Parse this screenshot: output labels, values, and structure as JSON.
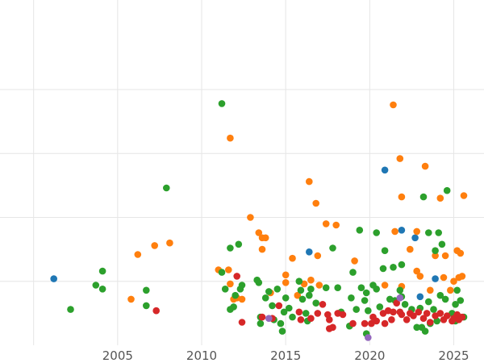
{
  "chart_data": {
    "type": "scatter",
    "title": "",
    "xlabel": "",
    "ylabel": "",
    "xlim": [
      1998.0,
      2026.8
    ],
    "ylim": [
      0,
      27
    ],
    "x_ticks": [
      2005,
      2010,
      2015,
      2020,
      2025
    ],
    "x_tick_labels": [
      "2005",
      "2010",
      "2015",
      "2020",
      "2025"
    ],
    "y_gridlines": [
      5,
      10,
      15,
      20
    ],
    "grid": true,
    "legend": "none",
    "series": [
      {
        "color": "#1f77b4",
        "points": [
          [
            2001.2,
            5.2
          ],
          [
            2016.4,
            7.3
          ],
          [
            2020.9,
            13.7
          ],
          [
            2021.9,
            9.0
          ],
          [
            2022.7,
            8.4
          ],
          [
            2023.9,
            5.2
          ],
          [
            2023.0,
            3.8
          ]
        ]
      },
      {
        "color": "#ff7f0e",
        "points": [
          [
            2005.8,
            3.6
          ],
          [
            2006.2,
            7.1
          ],
          [
            2007.2,
            7.8
          ],
          [
            2008.1,
            8.0
          ],
          [
            2011.0,
            5.9
          ],
          [
            2011.6,
            5.9
          ],
          [
            2011.7,
            16.2
          ],
          [
            2011.7,
            4.8
          ],
          [
            2011.9,
            3.6
          ],
          [
            2012.1,
            3.7
          ],
          [
            2012.4,
            3.6
          ],
          [
            2012.9,
            10.0
          ],
          [
            2013.4,
            8.8
          ],
          [
            2013.6,
            8.4
          ],
          [
            2013.6,
            7.5
          ],
          [
            2013.8,
            8.4
          ],
          [
            2014.1,
            4.1
          ],
          [
            2015.0,
            5.5
          ],
          [
            2015.0,
            4.9
          ],
          [
            2015.4,
            6.8
          ],
          [
            2015.7,
            3.9
          ],
          [
            2016.1,
            4.8
          ],
          [
            2016.4,
            12.8
          ],
          [
            2016.5,
            5.1
          ],
          [
            2016.8,
            11.1
          ],
          [
            2016.9,
            7.0
          ],
          [
            2017.0,
            4.7
          ],
          [
            2017.4,
            9.5
          ],
          [
            2018.0,
            9.4
          ],
          [
            2019.1,
            6.6
          ],
          [
            2020.9,
            4.7
          ],
          [
            2021.4,
            18.8
          ],
          [
            2021.5,
            8.9
          ],
          [
            2021.8,
            14.6
          ],
          [
            2021.9,
            4.6
          ],
          [
            2021.9,
            11.6
          ],
          [
            2022.4,
            7.5
          ],
          [
            2022.8,
            5.8
          ],
          [
            2022.8,
            8.9
          ],
          [
            2023.0,
            5.4
          ],
          [
            2023.3,
            14.0
          ],
          [
            2023.6,
            4.3
          ],
          [
            2023.9,
            7.0
          ],
          [
            2024.2,
            11.5
          ],
          [
            2024.4,
            5.3
          ],
          [
            2024.5,
            7.0
          ],
          [
            2024.8,
            4.3
          ],
          [
            2025.0,
            5.0
          ],
          [
            2025.2,
            7.4
          ],
          [
            2025.3,
            5.3
          ],
          [
            2025.4,
            7.2
          ],
          [
            2025.5,
            5.4
          ],
          [
            2025.6,
            11.7
          ]
        ]
      },
      {
        "color": "#2ca02c",
        "points": [
          [
            2002.2,
            2.8
          ],
          [
            2003.7,
            4.7
          ],
          [
            2004.1,
            5.8
          ],
          [
            2004.1,
            4.4
          ],
          [
            2006.7,
            4.3
          ],
          [
            2006.7,
            3.1
          ],
          [
            2007.9,
            12.3
          ],
          [
            2011.2,
            18.9
          ],
          [
            2011.2,
            5.7
          ],
          [
            2011.4,
            4.4
          ],
          [
            2011.7,
            7.6
          ],
          [
            2011.7,
            2.8
          ],
          [
            2011.9,
            3.0
          ],
          [
            2012.0,
            3.9
          ],
          [
            2012.2,
            7.9
          ],
          [
            2012.3,
            4.4
          ],
          [
            2012.4,
            4.7
          ],
          [
            2013.3,
            5.1
          ],
          [
            2013.4,
            4.9
          ],
          [
            2013.5,
            2.2
          ],
          [
            2013.5,
            1.7
          ],
          [
            2013.8,
            3.7
          ],
          [
            2014.0,
            4.2
          ],
          [
            2014.2,
            3.1
          ],
          [
            2014.3,
            2.0
          ],
          [
            2014.5,
            4.4
          ],
          [
            2014.7,
            1.7
          ],
          [
            2014.8,
            1.1
          ],
          [
            2014.9,
            2.6
          ],
          [
            2015.0,
            3.7
          ],
          [
            2015.2,
            2.9
          ],
          [
            2015.4,
            2.2
          ],
          [
            2015.8,
            5.0
          ],
          [
            2015.9,
            4.3
          ],
          [
            2016.0,
            3.6
          ],
          [
            2016.2,
            2.5
          ],
          [
            2016.3,
            1.9
          ],
          [
            2016.4,
            3.9
          ],
          [
            2016.5,
            4.4
          ],
          [
            2016.8,
            3.3
          ],
          [
            2017.4,
            4.5
          ],
          [
            2017.8,
            7.6
          ],
          [
            2018.1,
            4.5
          ],
          [
            2018.3,
            2.6
          ],
          [
            2018.8,
            1.5
          ],
          [
            2018.9,
            3.7
          ],
          [
            2019.0,
            5.7
          ],
          [
            2019.2,
            2.8
          ],
          [
            2019.4,
            9.0
          ],
          [
            2019.5,
            4.5
          ],
          [
            2019.7,
            3.5
          ],
          [
            2019.8,
            4.1
          ],
          [
            2019.8,
            0.9
          ],
          [
            2019.9,
            2.7
          ],
          [
            2020.2,
            4.7
          ],
          [
            2020.4,
            8.8
          ],
          [
            2020.4,
            4.4
          ],
          [
            2020.6,
            3.0
          ],
          [
            2020.8,
            6.0
          ],
          [
            2020.9,
            7.4
          ],
          [
            2021.2,
            3.6
          ],
          [
            2021.4,
            6.1
          ],
          [
            2021.5,
            3.5
          ],
          [
            2021.8,
            4.3
          ],
          [
            2021.9,
            6.3
          ],
          [
            2021.9,
            3.8
          ],
          [
            2022.1,
            3.2
          ],
          [
            2022.5,
            2.8
          ],
          [
            2022.8,
            1.4
          ],
          [
            2023.0,
            2.9
          ],
          [
            2023.1,
            1.4
          ],
          [
            2023.2,
            11.6
          ],
          [
            2023.3,
            1.1
          ],
          [
            2023.5,
            3.4
          ],
          [
            2023.5,
            8.8
          ],
          [
            2023.6,
            1.7
          ],
          [
            2023.8,
            2.8
          ],
          [
            2023.9,
            7.4
          ],
          [
            2024.0,
            1.9
          ],
          [
            2024.1,
            8.8
          ],
          [
            2024.2,
            3.9
          ],
          [
            2024.3,
            7.9
          ],
          [
            2024.5,
            3.6
          ],
          [
            2024.6,
            12.1
          ],
          [
            2024.9,
            2.5
          ],
          [
            2025.1,
            3.2
          ],
          [
            2025.1,
            1.9
          ],
          [
            2025.2,
            4.3
          ],
          [
            2025.4,
            3.5
          ],
          [
            2025.6,
            2.2
          ]
        ]
      },
      {
        "color": "#d62728",
        "points": [
          [
            2007.3,
            2.7
          ],
          [
            2012.1,
            5.4
          ],
          [
            2012.4,
            1.8
          ],
          [
            2013.6,
            2.2
          ],
          [
            2014.2,
            2.1
          ],
          [
            2014.6,
            3.1
          ],
          [
            2015.8,
            2.6
          ],
          [
            2015.9,
            2.0
          ],
          [
            2016.5,
            2.1
          ],
          [
            2016.9,
            2.5
          ],
          [
            2017.2,
            3.2
          ],
          [
            2017.5,
            2.4
          ],
          [
            2017.6,
            2.0
          ],
          [
            2017.6,
            1.3
          ],
          [
            2017.8,
            1.4
          ],
          [
            2018.1,
            2.5
          ],
          [
            2018.4,
            2.4
          ],
          [
            2019.0,
            1.7
          ],
          [
            2019.7,
            1.7
          ],
          [
            2020.1,
            1.7
          ],
          [
            2020.2,
            2.2
          ],
          [
            2020.4,
            1.9
          ],
          [
            2020.8,
            2.5
          ],
          [
            2020.9,
            1.7
          ],
          [
            2021.1,
            2.7
          ],
          [
            2021.3,
            2.0
          ],
          [
            2021.4,
            2.6
          ],
          [
            2021.6,
            3.3
          ],
          [
            2021.8,
            2.6
          ],
          [
            2021.9,
            2.4
          ],
          [
            2022.2,
            2.0
          ],
          [
            2022.4,
            2.5
          ],
          [
            2022.6,
            2.3
          ],
          [
            2022.9,
            2.6
          ],
          [
            2023.2,
            2.1
          ],
          [
            2023.4,
            2.5
          ],
          [
            2023.6,
            1.8
          ],
          [
            2023.9,
            2.3
          ],
          [
            2024.2,
            2.5
          ],
          [
            2024.4,
            2.0
          ],
          [
            2024.6,
            2.3
          ],
          [
            2024.9,
            1.9
          ],
          [
            2025.0,
            2.1
          ],
          [
            2025.2,
            2.4
          ],
          [
            2025.3,
            2.0
          ],
          [
            2025.5,
            2.2
          ]
        ]
      },
      {
        "color": "#9467bd",
        "points": [
          [
            2014.0,
            2.1
          ],
          [
            2019.9,
            0.6
          ],
          [
            2021.8,
            3.7
          ]
        ]
      }
    ]
  }
}
